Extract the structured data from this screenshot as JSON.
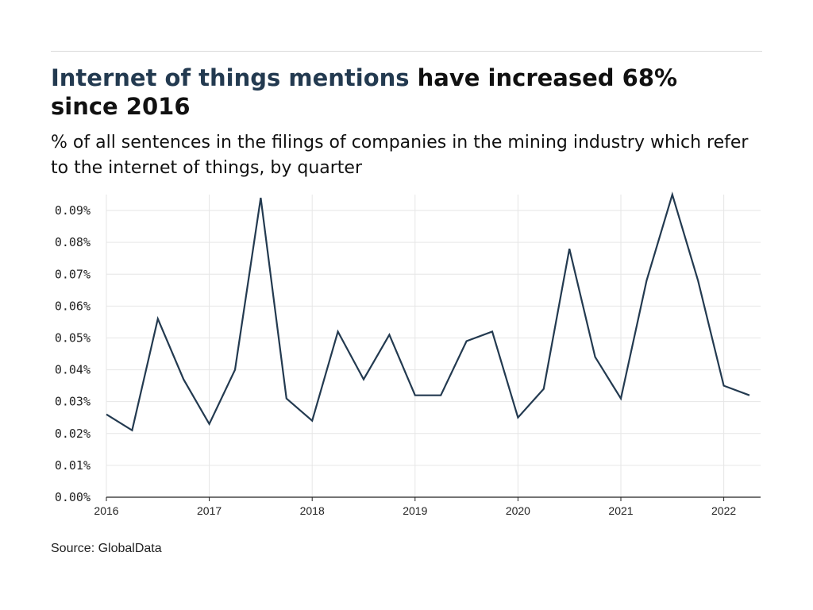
{
  "header": {
    "title_highlight": "Internet of things mentions",
    "title_rest": " have increased 68% since 2016",
    "subtitle": "% of all sentences in the filings of companies in the mining industry which refer to the internet of things, by quarter"
  },
  "footer": {
    "source": "Source: GlobalData"
  },
  "colors": {
    "line": "#233a50",
    "grid": "#e6e6e6",
    "axis": "#222222",
    "title_highlight": "#233a50"
  },
  "chart_data": {
    "type": "line",
    "title": "Internet of things mentions have increased 68% since 2016",
    "subtitle": "% of all sentences in the filings of companies in the mining industry which refer to the internet of things, by quarter",
    "xlabel": "",
    "ylabel": "",
    "x": [
      "2016 Q1",
      "2016 Q2",
      "2016 Q3",
      "2016 Q4",
      "2017 Q1",
      "2017 Q2",
      "2017 Q3",
      "2017 Q4",
      "2018 Q1",
      "2018 Q2",
      "2018 Q3",
      "2018 Q4",
      "2019 Q1",
      "2019 Q2",
      "2019 Q3",
      "2019 Q4",
      "2020 Q1",
      "2020 Q2",
      "2020 Q3",
      "2020 Q4",
      "2021 Q1",
      "2021 Q2",
      "2021 Q3",
      "2021 Q4",
      "2022 Q1",
      "2022 Q2"
    ],
    "series": [
      {
        "name": "",
        "values": [
          0.026,
          0.021,
          0.056,
          0.037,
          0.023,
          0.04,
          0.094,
          0.031,
          0.024,
          0.052,
          0.037,
          0.051,
          0.032,
          0.032,
          0.049,
          0.052,
          0.025,
          0.034,
          0.078,
          0.044,
          0.031,
          0.068,
          0.095,
          0.068,
          0.035,
          0.032
        ]
      }
    ],
    "ylim": [
      0,
      0.095
    ],
    "yticks": [
      0,
      0.01,
      0.02,
      0.03,
      0.04,
      0.05,
      0.06,
      0.07,
      0.08,
      0.09
    ],
    "ytick_labels": [
      "0.00%",
      "0.01%",
      "0.02%",
      "0.03%",
      "0.04%",
      "0.05%",
      "0.06%",
      "0.07%",
      "0.08%",
      "0.09%"
    ],
    "xtick_labels": [
      "2016",
      "2017",
      "2018",
      "2019",
      "2020",
      "2021",
      "2022"
    ],
    "grid": true,
    "legend": "none"
  }
}
